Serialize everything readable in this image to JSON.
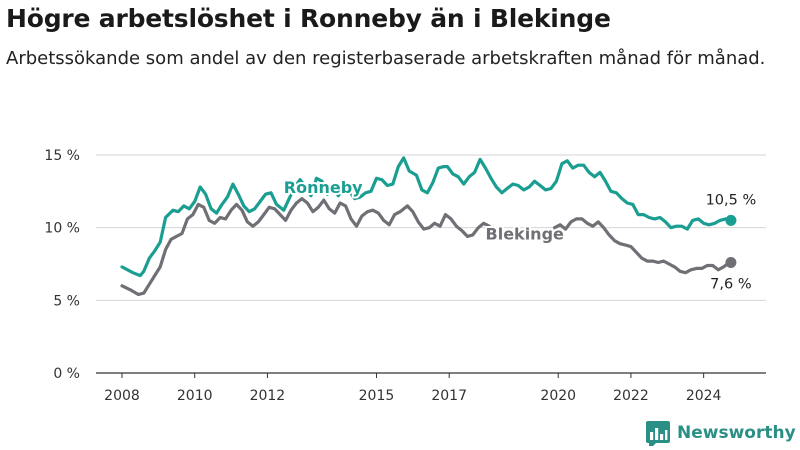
{
  "title": "Högre arbetslöshet i Ronneby än i Blekinge",
  "subtitle": "Arbetssökande som andel av den registerbaserade arbetskraften månad för månad.",
  "brand": {
    "name": "Newsworthy",
    "icon": "newsworthy-logo-icon"
  },
  "colors": {
    "ronneby": "#1a9e92",
    "blekinge": "#6f6f75",
    "grid": "#d4d4d4",
    "axis": "#333333",
    "brand": "#2a8f84"
  },
  "chart_data": {
    "type": "line",
    "title": "Högre arbetslöshet i Ronneby än i Blekinge",
    "subtitle": "Arbetssökande som andel av den registerbaserade arbetskraften månad för månad.",
    "xlabel": "",
    "ylabel": "",
    "ylim": [
      0,
      15
    ],
    "yticks": [
      0,
      5,
      10,
      15
    ],
    "ytick_labels": [
      "0 %",
      "5 %",
      "10 %",
      "15 %"
    ],
    "xlim": [
      2008.0,
      2025.0
    ],
    "xticks": [
      2008,
      2010,
      2012,
      2015,
      2017,
      2020,
      2022,
      2024
    ],
    "xtick_labels": [
      "2008",
      "2010",
      "2012",
      "2015",
      "2017",
      "2020",
      "2022",
      "2024"
    ],
    "grid": "horizontal",
    "legend": "direct labels on lines",
    "series": [
      {
        "name": "Ronneby",
        "end_label": "10,5 %",
        "end_value": 10.5,
        "points": [
          [
            2008.0,
            7.3
          ],
          [
            2008.3,
            6.9
          ],
          [
            2008.5,
            6.7
          ],
          [
            2008.6,
            7.0
          ],
          [
            2008.75,
            7.9
          ],
          [
            2008.9,
            8.4
          ],
          [
            2009.05,
            9.0
          ],
          [
            2009.2,
            10.7
          ],
          [
            2009.4,
            11.2
          ],
          [
            2009.55,
            11.1
          ],
          [
            2009.7,
            11.5
          ],
          [
            2009.85,
            11.3
          ],
          [
            2010.0,
            11.8
          ],
          [
            2010.15,
            12.8
          ],
          [
            2010.3,
            12.3
          ],
          [
            2010.45,
            11.3
          ],
          [
            2010.6,
            11.0
          ],
          [
            2010.75,
            11.6
          ],
          [
            2010.9,
            12.1
          ],
          [
            2011.05,
            13.0
          ],
          [
            2011.2,
            12.3
          ],
          [
            2011.35,
            11.5
          ],
          [
            2011.5,
            11.1
          ],
          [
            2011.65,
            11.3
          ],
          [
            2011.8,
            11.8
          ],
          [
            2011.95,
            12.3
          ],
          [
            2012.1,
            12.4
          ],
          [
            2012.25,
            11.6
          ],
          [
            2012.45,
            11.2
          ],
          [
            2012.6,
            12.0
          ],
          [
            2012.75,
            12.8
          ],
          [
            2012.9,
            13.3
          ],
          [
            2013.05,
            12.8
          ],
          [
            2013.2,
            12.2
          ],
          [
            2013.35,
            13.4
          ],
          [
            2013.5,
            13.2
          ],
          [
            2013.65,
            12.3
          ],
          [
            2013.8,
            12.8
          ],
          [
            2013.95,
            12.2
          ],
          [
            2014.1,
            12.9
          ],
          [
            2014.25,
            12.5
          ],
          [
            2014.4,
            12.0
          ],
          [
            2014.55,
            12.1
          ],
          [
            2014.7,
            12.4
          ],
          [
            2014.85,
            12.5
          ],
          [
            2015.0,
            13.4
          ],
          [
            2015.15,
            13.3
          ],
          [
            2015.3,
            12.9
          ],
          [
            2015.45,
            13.0
          ],
          [
            2015.6,
            14.2
          ],
          [
            2015.75,
            14.8
          ],
          [
            2015.9,
            13.9
          ],
          [
            2016.1,
            13.6
          ],
          [
            2016.25,
            12.6
          ],
          [
            2016.4,
            12.4
          ],
          [
            2016.55,
            13.1
          ],
          [
            2016.7,
            14.1
          ],
          [
            2016.85,
            14.2
          ],
          [
            2016.95,
            14.2
          ],
          [
            2017.1,
            13.7
          ],
          [
            2017.25,
            13.5
          ],
          [
            2017.4,
            13.0
          ],
          [
            2017.55,
            13.5
          ],
          [
            2017.7,
            13.8
          ],
          [
            2017.85,
            14.7
          ],
          [
            2018.0,
            14.1
          ],
          [
            2018.15,
            13.4
          ],
          [
            2018.3,
            12.8
          ],
          [
            2018.45,
            12.4
          ],
          [
            2018.6,
            12.7
          ],
          [
            2018.75,
            13.0
          ],
          [
            2018.9,
            12.9
          ],
          [
            2019.05,
            12.6
          ],
          [
            2019.2,
            12.8
          ],
          [
            2019.35,
            13.2
          ],
          [
            2019.5,
            12.9
          ],
          [
            2019.65,
            12.6
          ],
          [
            2019.8,
            12.7
          ],
          [
            2019.95,
            13.2
          ],
          [
            2020.1,
            14.4
          ],
          [
            2020.25,
            14.6
          ],
          [
            2020.4,
            14.1
          ],
          [
            2020.55,
            14.3
          ],
          [
            2020.7,
            14.3
          ],
          [
            2020.85,
            13.8
          ],
          [
            2021.0,
            13.5
          ],
          [
            2021.15,
            13.8
          ],
          [
            2021.3,
            13.2
          ],
          [
            2021.45,
            12.5
          ],
          [
            2021.6,
            12.4
          ],
          [
            2021.75,
            12.0
          ],
          [
            2021.9,
            11.7
          ],
          [
            2022.05,
            11.6
          ],
          [
            2022.2,
            10.9
          ],
          [
            2022.35,
            10.9
          ],
          [
            2022.5,
            10.7
          ],
          [
            2022.65,
            10.6
          ],
          [
            2022.8,
            10.7
          ],
          [
            2022.95,
            10.4
          ],
          [
            2023.1,
            10.0
          ],
          [
            2023.25,
            10.1
          ],
          [
            2023.4,
            10.1
          ],
          [
            2023.55,
            9.9
          ],
          [
            2023.7,
            10.5
          ],
          [
            2023.85,
            10.6
          ],
          [
            2024.0,
            10.3
          ],
          [
            2024.15,
            10.2
          ],
          [
            2024.3,
            10.3
          ],
          [
            2024.45,
            10.5
          ],
          [
            2024.6,
            10.6
          ],
          [
            2024.75,
            10.5
          ]
        ]
      },
      {
        "name": "Blekinge",
        "end_label": "7,6 %",
        "end_value": 7.6,
        "segments": [
          [
            [
              2008.0,
              6.0
            ],
            [
              2008.25,
              5.7
            ],
            [
              2008.45,
              5.4
            ],
            [
              2008.6,
              5.5
            ],
            [
              2008.75,
              6.1
            ],
            [
              2008.9,
              6.7
            ],
            [
              2009.05,
              7.3
            ],
            [
              2009.2,
              8.5
            ],
            [
              2009.35,
              9.2
            ],
            [
              2009.5,
              9.4
            ],
            [
              2009.65,
              9.6
            ],
            [
              2009.8,
              10.6
            ],
            [
              2009.95,
              10.9
            ],
            [
              2010.1,
              11.6
            ],
            [
              2010.25,
              11.4
            ],
            [
              2010.4,
              10.5
            ],
            [
              2010.55,
              10.3
            ],
            [
              2010.7,
              10.7
            ],
            [
              2010.85,
              10.6
            ],
            [
              2011.0,
              11.2
            ],
            [
              2011.15,
              11.6
            ],
            [
              2011.3,
              11.2
            ],
            [
              2011.45,
              10.4
            ],
            [
              2011.6,
              10.1
            ],
            [
              2011.75,
              10.4
            ],
            [
              2011.9,
              10.9
            ],
            [
              2012.05,
              11.4
            ],
            [
              2012.2,
              11.3
            ],
            [
              2012.35,
              10.9
            ],
            [
              2012.5,
              10.5
            ],
            [
              2012.65,
              11.2
            ],
            [
              2012.8,
              11.7
            ],
            [
              2012.95,
              12.0
            ],
            [
              2013.1,
              11.7
            ],
            [
              2013.25,
              11.1
            ],
            [
              2013.4,
              11.4
            ],
            [
              2013.55,
              11.9
            ],
            [
              2013.7,
              11.3
            ],
            [
              2013.85,
              11.0
            ],
            [
              2014.0,
              11.7
            ],
            [
              2014.15,
              11.5
            ],
            [
              2014.3,
              10.6
            ],
            [
              2014.45,
              10.1
            ],
            [
              2014.6,
              10.8
            ],
            [
              2014.75,
              11.1
            ],
            [
              2014.9,
              11.2
            ],
            [
              2015.05,
              11.0
            ],
            [
              2015.2,
              10.5
            ],
            [
              2015.35,
              10.2
            ],
            [
              2015.5,
              10.9
            ],
            [
              2015.65,
              11.1
            ],
            [
              2015.85,
              11.5
            ],
            [
              2016.0,
              11.1
            ],
            [
              2016.15,
              10.4
            ],
            [
              2016.3,
              9.9
            ],
            [
              2016.45,
              10.0
            ],
            [
              2016.6,
              10.3
            ],
            [
              2016.75,
              10.1
            ],
            [
              2016.9,
              10.9
            ],
            [
              2017.05,
              10.6
            ],
            [
              2017.2,
              10.1
            ],
            [
              2017.35,
              9.8
            ],
            [
              2017.5,
              9.4
            ],
            [
              2017.65,
              9.5
            ],
            [
              2017.8,
              10.0
            ],
            [
              2017.95,
              10.3
            ],
            [
              2018.1,
              10.1
            ]
          ],
          [
            [
              2019.9,
              10.0
            ],
            [
              2020.05,
              10.2
            ],
            [
              2020.2,
              9.9
            ],
            [
              2020.35,
              10.4
            ],
            [
              2020.5,
              10.6
            ],
            [
              2020.65,
              10.6
            ],
            [
              2020.8,
              10.3
            ],
            [
              2020.95,
              10.1
            ],
            [
              2021.1,
              10.4
            ],
            [
              2021.25,
              10.0
            ],
            [
              2021.4,
              9.5
            ],
            [
              2021.55,
              9.1
            ],
            [
              2021.7,
              8.9
            ],
            [
              2021.85,
              8.8
            ],
            [
              2022.0,
              8.7
            ],
            [
              2022.15,
              8.3
            ],
            [
              2022.3,
              7.9
            ],
            [
              2022.45,
              7.7
            ],
            [
              2022.6,
              7.7
            ],
            [
              2022.75,
              7.6
            ],
            [
              2022.9,
              7.7
            ],
            [
              2023.05,
              7.5
            ],
            [
              2023.2,
              7.3
            ],
            [
              2023.35,
              7.0
            ],
            [
              2023.5,
              6.9
            ],
            [
              2023.65,
              7.1
            ],
            [
              2023.8,
              7.2
            ],
            [
              2023.95,
              7.2
            ],
            [
              2024.1,
              7.4
            ],
            [
              2024.25,
              7.4
            ],
            [
              2024.4,
              7.1
            ],
            [
              2024.55,
              7.3
            ],
            [
              2024.65,
              7.5
            ],
            [
              2024.75,
              7.6
            ]
          ]
        ]
      }
    ]
  }
}
